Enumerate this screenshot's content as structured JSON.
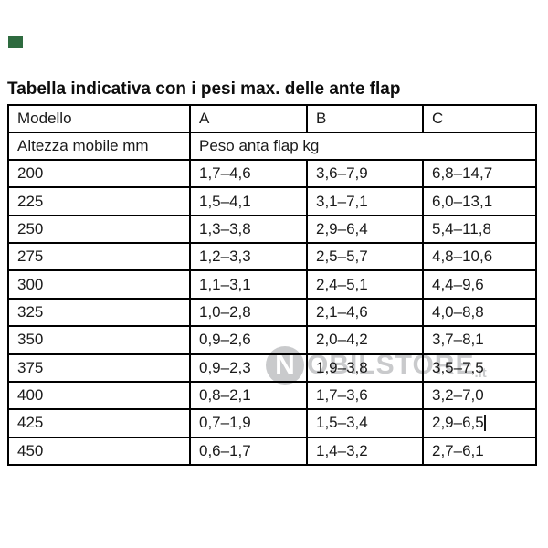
{
  "marker": {
    "color": "#2e6b3f"
  },
  "title": "Tabella indicativa con i pesi max. delle ante flap",
  "table": {
    "columns": [
      "Modello",
      "A",
      "B",
      "C"
    ],
    "subheader_left": "Altezza mobile mm",
    "subheader_span": "Peso anta flap kg",
    "rows": [
      [
        "200",
        "1,7–4,6",
        "3,6–7,9",
        "6,8–14,7"
      ],
      [
        "225",
        "1,5–4,1",
        "3,1–7,1",
        "6,0–13,1"
      ],
      [
        "250",
        "1,3–3,8",
        "2,9–6,4",
        "5,4–11,8"
      ],
      [
        "275",
        "1,2–3,3",
        "2,5–5,7",
        "4,8–10,6"
      ],
      [
        "300",
        "1,1–3,1",
        "2,4–5,1",
        "4,4–9,6"
      ],
      [
        "325",
        "1,0–2,8",
        "2,1–4,6",
        "4,0–8,8"
      ],
      [
        "350",
        "0,9–2,6",
        "2,0–4,2",
        "3,7–8,1"
      ],
      [
        "375",
        "0,9–2,3",
        "1,9–3,8",
        "3,5–7,5"
      ],
      [
        "400",
        "0,8–2,1",
        "1,7–3,6",
        "3,2–7,0"
      ],
      [
        "425",
        "0,7–1,9",
        "1,5–3,4",
        "2,9–6,5"
      ],
      [
        "450",
        "0,6–1,7",
        "1,4–3,2",
        "2,7–6,1"
      ]
    ],
    "cursor_cell": [
      9,
      3
    ]
  },
  "watermark": {
    "logo_letter": "N",
    "text": "OBILSTORE",
    "suffix": ".it",
    "color": "#c5c6c8"
  }
}
